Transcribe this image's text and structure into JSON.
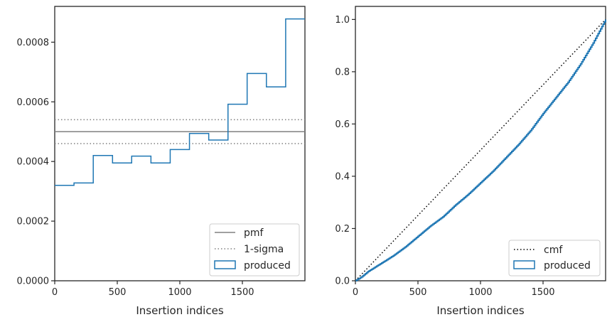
{
  "chart_data": [
    {
      "type": "step",
      "xlabel": "Insertion indices",
      "ylabel": "",
      "xlim": [
        0,
        2000
      ],
      "ylim": [
        0,
        0.00092
      ],
      "x_ticks": [
        0,
        500,
        1000,
        1500
      ],
      "x_tick_labels": [
        "0",
        "500",
        "1000",
        "1500"
      ],
      "y_ticks": [
        0,
        0.0002,
        0.0004,
        0.0006,
        0.0008
      ],
      "y_tick_labels": [
        "0.0000",
        "0.0002",
        "0.0004",
        "0.0006",
        "0.0008"
      ],
      "grid": false,
      "legend_position": "lower-right",
      "series": [
        {
          "name": "pmf",
          "style": "solid",
          "color": "#808080",
          "values": [
            0.0005
          ]
        },
        {
          "name": "1-sigma",
          "style": "dotted",
          "color": "#808080",
          "values": [
            0.00054,
            0.00046
          ]
        },
        {
          "name": "produced",
          "style": "step",
          "color": "#1f77b4",
          "bin_edges": [
            0,
            154,
            308,
            462,
            615,
            769,
            923,
            1077,
            1231,
            1385,
            1538,
            1692,
            1846,
            2000
          ],
          "values": [
            0.00032,
            0.000328,
            0.00042,
            0.000395,
            0.000418,
            0.000395,
            0.00044,
            0.000494,
            0.000472,
            0.000592,
            0.000695,
            0.00065,
            0.000878
          ]
        }
      ]
    },
    {
      "type": "line",
      "xlabel": "Insertion indices",
      "ylabel": "",
      "xlim": [
        0,
        2000
      ],
      "ylim": [
        0,
        1.05
      ],
      "x_ticks": [
        0,
        500,
        1000,
        1500
      ],
      "x_tick_labels": [
        "0",
        "500",
        "1000",
        "1500"
      ],
      "y_ticks": [
        0,
        0.2,
        0.4,
        0.6,
        0.8,
        1.0
      ],
      "y_tick_labels": [
        "0.0",
        "0.2",
        "0.4",
        "0.6",
        "0.8",
        "1.0"
      ],
      "grid": false,
      "legend_position": "lower-right",
      "series": [
        {
          "name": "cmf",
          "style": "dotted",
          "color": "#000000",
          "x": [
            0,
            2000
          ],
          "y": [
            0,
            1.0
          ]
        },
        {
          "name": "produced",
          "style": "step",
          "color": "#1f77b4",
          "x": [
            0,
            50,
            100,
            150,
            200,
            300,
            400,
            500,
            600,
            700,
            800,
            900,
            1000,
            1100,
            1200,
            1300,
            1400,
            1500,
            1600,
            1700,
            1800,
            1900,
            2000
          ],
          "y": [
            0,
            0.015,
            0.035,
            0.05,
            0.065,
            0.095,
            0.13,
            0.17,
            0.21,
            0.245,
            0.29,
            0.33,
            0.375,
            0.42,
            0.47,
            0.52,
            0.575,
            0.64,
            0.7,
            0.76,
            0.83,
            0.91,
            1.0
          ]
        }
      ]
    }
  ]
}
